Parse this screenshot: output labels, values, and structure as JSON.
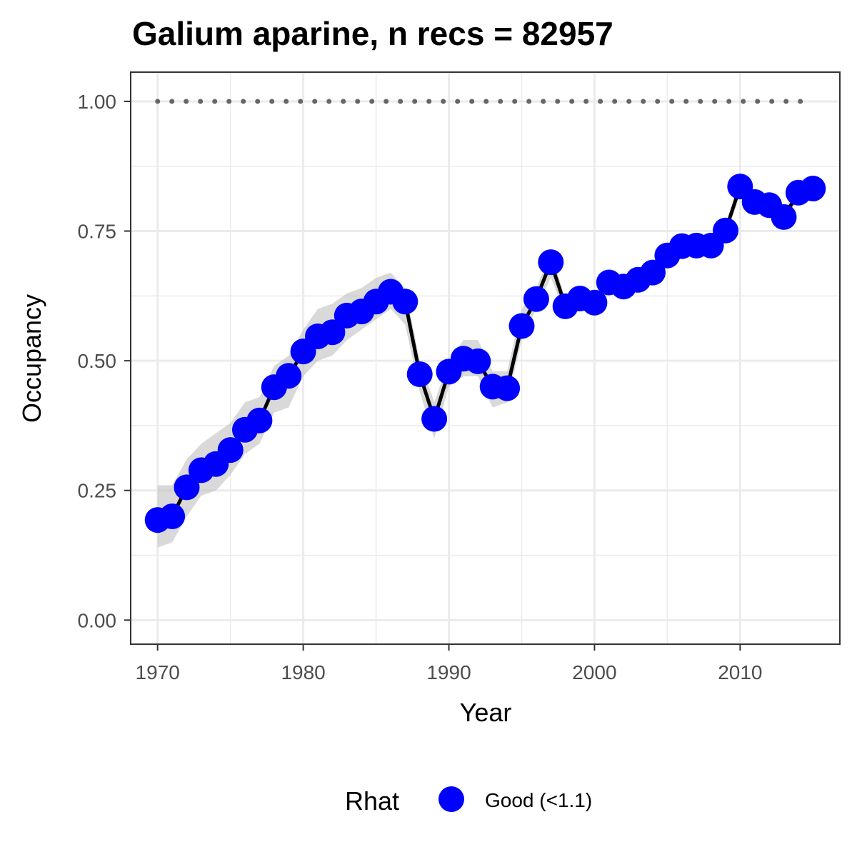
{
  "chart_data": {
    "type": "line",
    "title": "Galium aparine, n recs = 82957",
    "xlabel": "Year",
    "ylabel": "Occupancy",
    "xlim": [
      1968.2,
      2016.8
    ],
    "ylim": [
      -0.045,
      1.055
    ],
    "x_ticks": [
      1970,
      1980,
      1990,
      2000,
      2010
    ],
    "x_tick_labels": [
      "1970",
      "1980",
      "1990",
      "2000",
      "2010"
    ],
    "y_ticks": [
      0,
      0.25,
      0.5,
      0.75,
      1.0
    ],
    "y_tick_labels": [
      "0.00",
      "0.25",
      "0.50",
      "0.75",
      "1.00"
    ],
    "grid": true,
    "series": [
      {
        "x": [
          1970,
          1971,
          1972,
          1973,
          1974,
          1975,
          1976,
          1977,
          1978,
          1979,
          1980,
          1981,
          1982,
          1983,
          1984,
          1985,
          1986,
          1987,
          1988,
          1989,
          1990,
          1991,
          1992,
          1993,
          1994,
          1995,
          1996,
          1997,
          1998,
          1999,
          2000,
          2001,
          2002,
          2003,
          2004,
          2005,
          2006,
          2007,
          2008,
          2009,
          2010,
          2011,
          2012,
          2013,
          2014,
          2015
        ],
        "y": [
          0.193,
          0.2,
          0.256,
          0.289,
          0.301,
          0.328,
          0.367,
          0.385,
          0.449,
          0.471,
          0.518,
          0.547,
          0.555,
          0.587,
          0.595,
          0.614,
          0.633,
          0.614,
          0.474,
          0.388,
          0.479,
          0.504,
          0.499,
          0.45,
          0.447,
          0.567,
          0.619,
          0.69,
          0.605,
          0.62,
          0.612,
          0.651,
          0.643,
          0.656,
          0.67,
          0.703,
          0.721,
          0.722,
          0.722,
          0.751,
          0.836,
          0.806,
          0.8,
          0.777,
          0.824,
          0.832
        ],
        "lower": [
          0.14,
          0.15,
          0.2,
          0.24,
          0.25,
          0.28,
          0.32,
          0.34,
          0.4,
          0.41,
          0.47,
          0.5,
          0.51,
          0.54,
          0.56,
          0.58,
          0.6,
          0.57,
          0.44,
          0.35,
          0.45,
          0.47,
          0.47,
          0.41,
          0.42,
          0.54,
          0.6,
          0.66,
          0.59,
          0.6,
          0.59,
          0.63,
          0.63,
          0.64,
          0.65,
          0.69,
          0.71,
          0.71,
          0.71,
          0.74,
          0.82,
          0.79,
          0.79,
          0.77,
          0.81,
          0.82
        ],
        "upper": [
          0.26,
          0.26,
          0.31,
          0.34,
          0.36,
          0.38,
          0.42,
          0.43,
          0.49,
          0.51,
          0.56,
          0.6,
          0.61,
          0.63,
          0.64,
          0.66,
          0.67,
          0.64,
          0.5,
          0.42,
          0.5,
          0.54,
          0.54,
          0.48,
          0.48,
          0.6,
          0.64,
          0.71,
          0.62,
          0.64,
          0.63,
          0.67,
          0.66,
          0.67,
          0.69,
          0.72,
          0.73,
          0.74,
          0.74,
          0.76,
          0.85,
          0.82,
          0.81,
          0.79,
          0.84,
          0.85
        ]
      }
    ],
    "reference_line": {
      "y": 1.0,
      "x_from": 1970,
      "x_to": 2015,
      "style": "dotted",
      "color": "#666666"
    },
    "legend": {
      "title": "Rhat",
      "position": "bottom",
      "entries": [
        {
          "label": "Good (<1.1)",
          "color": "#0000ff"
        }
      ]
    },
    "colors": {
      "points": "#0000ff",
      "line": "#000000",
      "ribbon": "#bfbfbf",
      "grid": "#ebebeb",
      "panel_border": "#333333"
    }
  }
}
